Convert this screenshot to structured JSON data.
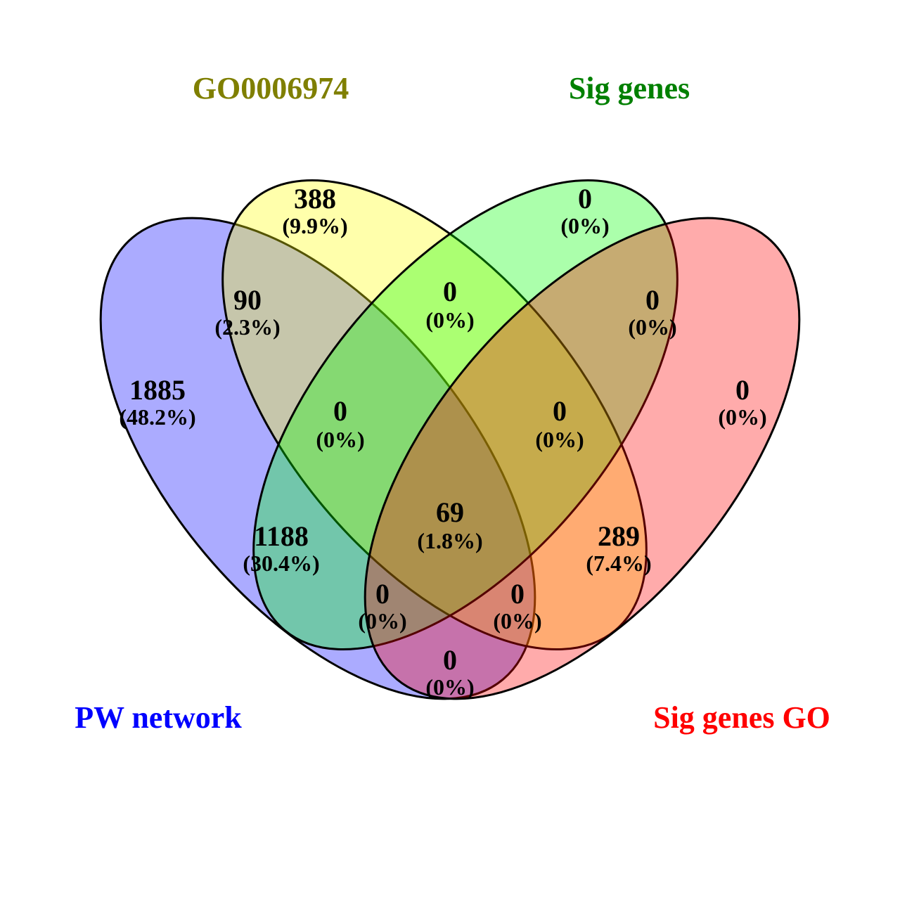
{
  "sets": [
    {
      "key": "pw",
      "label": "PW network",
      "color": "#0000ff",
      "fill": "#0000ff"
    },
    {
      "key": "go",
      "label": "GO0006974",
      "color": "#7f7f00",
      "fill": "#ffff00"
    },
    {
      "key": "sig",
      "label": "Sig genes",
      "color": "#008000",
      "fill": "#00ff00"
    },
    {
      "key": "siggo",
      "label": "Sig genes GO",
      "color": "#ff0000",
      "fill": "#ff0000"
    }
  ],
  "regions": {
    "go_only": {
      "count": "388",
      "pct": "(9.9%)"
    },
    "sig_only": {
      "count": "0",
      "pct": "(0%)"
    },
    "go_sig": {
      "count": "0",
      "pct": "(0%)"
    },
    "pw_go": {
      "count": "90",
      "pct": "(2.3%)"
    },
    "sig_siggo": {
      "count": "0",
      "pct": "(0%)"
    },
    "pw_only": {
      "count": "1885",
      "pct": "(48.2%)"
    },
    "siggo_only": {
      "count": "0",
      "pct": "(0%)"
    },
    "pw_go_sig": {
      "count": "0",
      "pct": "(0%)"
    },
    "go_sig_siggo": {
      "count": "0",
      "pct": "(0%)"
    },
    "all": {
      "count": "69",
      "pct": "(1.8%)"
    },
    "pw_sig": {
      "count": "1188",
      "pct": "(30.4%)"
    },
    "go_siggo": {
      "count": "289",
      "pct": "(7.4%)"
    },
    "pw_sig_siggo": {
      "count": "0",
      "pct": "(0%)"
    },
    "pw_go_siggo": {
      "count": "0",
      "pct": "(0%)"
    },
    "pw_siggo": {
      "count": "0",
      "pct": "(0%)"
    }
  }
}
